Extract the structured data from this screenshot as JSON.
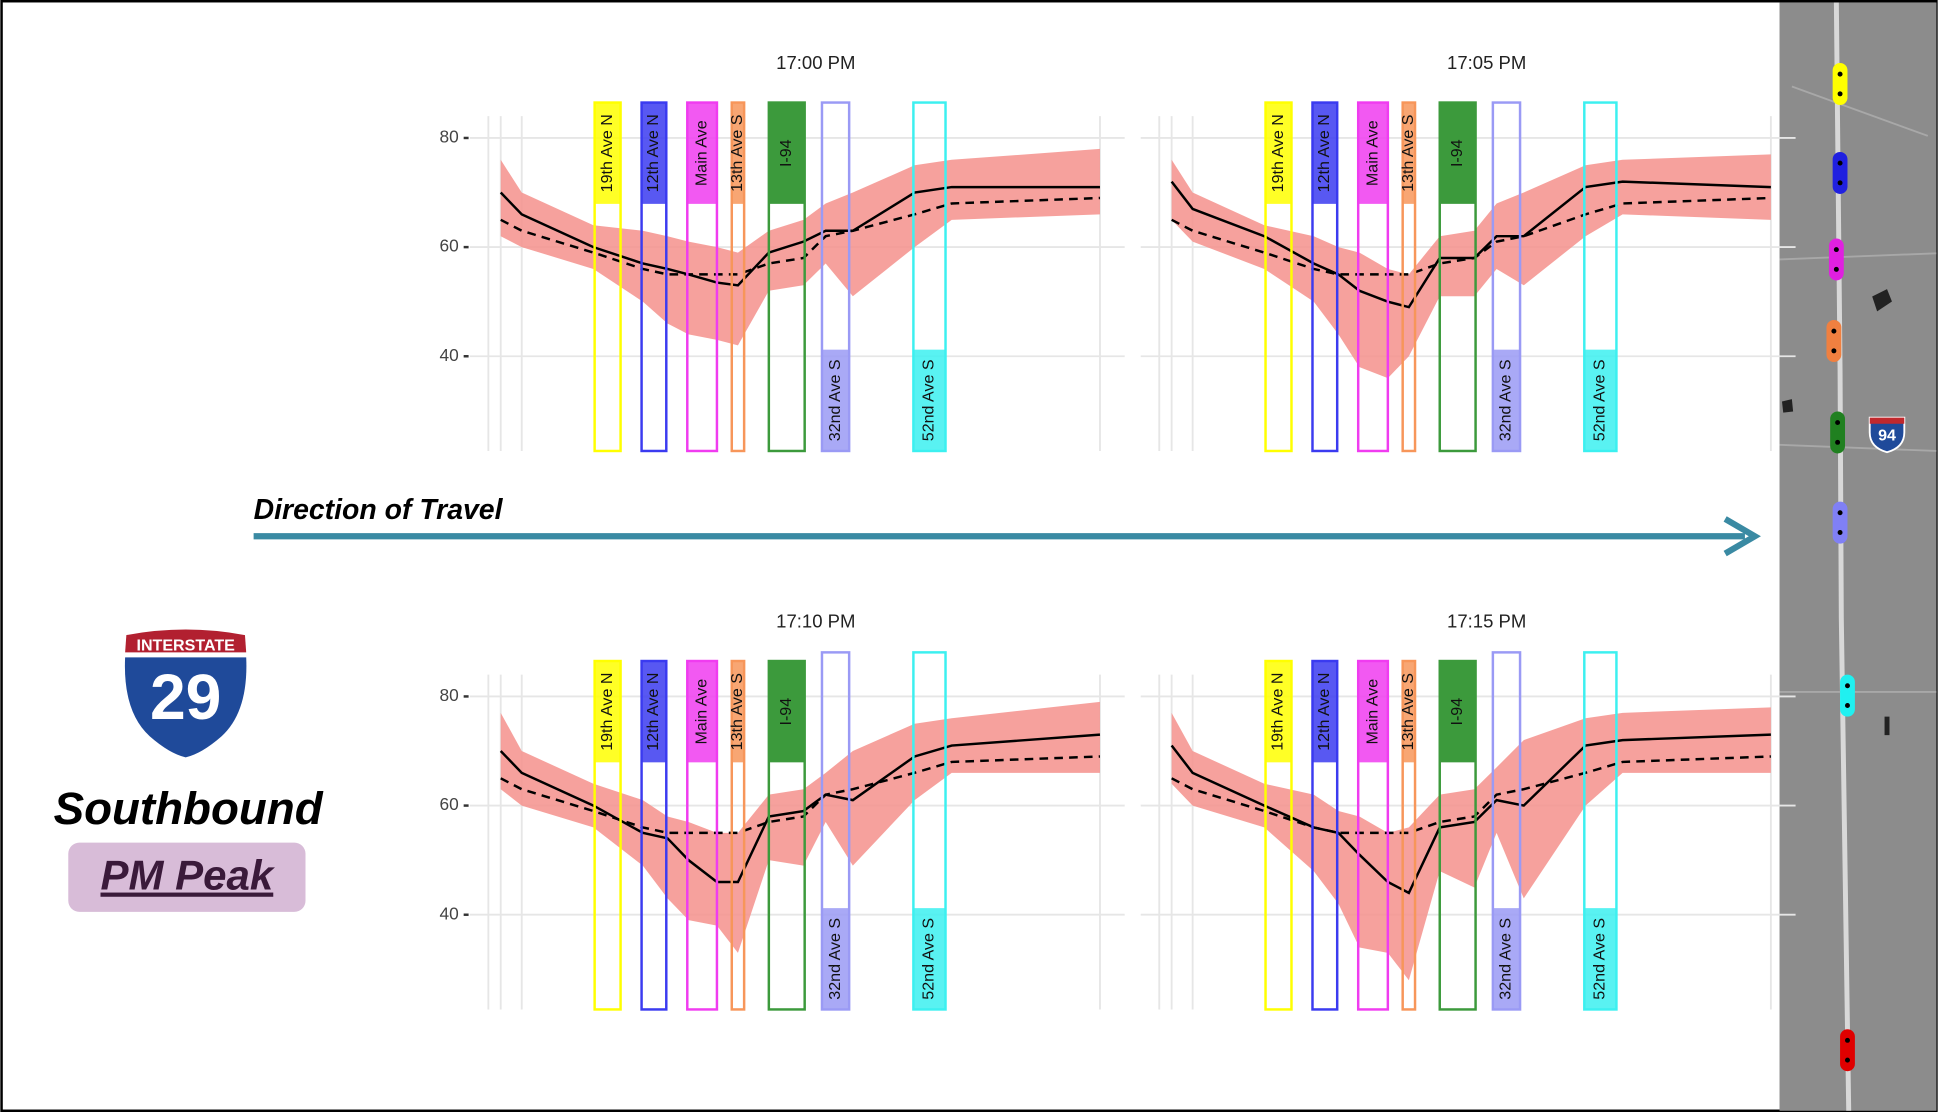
{
  "chart_data": [
    {
      "type": "line",
      "title": "17:00 PM",
      "ylim": [
        24,
        84
      ],
      "yticks": [
        40,
        60,
        80
      ],
      "grid": true,
      "series": [
        {
          "color": "#000000",
          "values": [
            70,
            66,
            60,
            57,
            56,
            55,
            53.5,
            53,
            59,
            61,
            63,
            63,
            70,
            71,
            71
          ]
        },
        {
          "color": "#000000",
          "dashed": true,
          "values": [
            65,
            63,
            59,
            56,
            55,
            55,
            55,
            55,
            57,
            58,
            62,
            63,
            66,
            68,
            69
          ]
        }
      ],
      "band": {
        "color": "#f4908c",
        "high": [
          76,
          70,
          64,
          63,
          62,
          61,
          60,
          59,
          63,
          65,
          68,
          70,
          75,
          76,
          78
        ],
        "low": [
          62,
          60,
          56,
          50,
          46,
          44,
          43,
          42,
          52,
          53,
          57,
          51,
          60,
          65,
          66
        ]
      }
    },
    {
      "type": "line",
      "title": "17:05 PM",
      "ylim": [
        24,
        84
      ],
      "yticks": [
        40,
        60,
        80
      ],
      "grid": true,
      "series": [
        {
          "color": "#000000",
          "values": [
            72,
            67,
            62,
            57,
            55,
            52,
            50,
            49,
            58,
            58,
            62,
            62,
            71,
            72,
            71
          ]
        },
        {
          "color": "#000000",
          "dashed": true,
          "values": [
            65,
            63,
            59,
            56,
            55,
            55,
            55,
            55,
            57,
            58,
            61,
            62,
            66,
            68,
            69
          ]
        }
      ],
      "band": {
        "color": "#f4908c",
        "high": [
          76,
          70,
          64,
          62,
          60,
          59,
          56,
          55,
          62,
          63,
          68,
          70,
          75,
          76,
          77
        ],
        "low": [
          65,
          61,
          56,
          50,
          44,
          38,
          36,
          40,
          51,
          51,
          56,
          53,
          62,
          66,
          65
        ]
      }
    },
    {
      "type": "line",
      "title": "17:10 PM",
      "ylim": [
        24,
        84
      ],
      "yticks": [
        40,
        60,
        80
      ],
      "grid": true,
      "series": [
        {
          "color": "#000000",
          "values": [
            70,
            66,
            60,
            55,
            54,
            50,
            46,
            46,
            58,
            59,
            62,
            61,
            69,
            71,
            73
          ]
        },
        {
          "color": "#000000",
          "dashed": true,
          "values": [
            65,
            63,
            59,
            56,
            55,
            55,
            55,
            55,
            57,
            58,
            62,
            63,
            66,
            68,
            69
          ]
        }
      ],
      "band": {
        "color": "#f4908c",
        "high": [
          77,
          70,
          64,
          61,
          58,
          57,
          55,
          55,
          62,
          63,
          66,
          70,
          75,
          76,
          79
        ],
        "low": [
          63,
          60,
          56,
          49,
          43,
          39,
          38,
          33,
          50,
          49,
          57,
          49,
          61,
          66,
          66
        ]
      }
    },
    {
      "type": "line",
      "title": "17:15 PM",
      "ylim": [
        24,
        84
      ],
      "yticks": [
        40,
        60,
        80
      ],
      "grid": true,
      "series": [
        {
          "color": "#000000",
          "values": [
            71,
            66,
            60,
            56,
            55,
            51,
            46,
            44,
            56,
            57,
            61,
            60,
            71,
            72,
            73
          ]
        },
        {
          "color": "#000000",
          "dashed": true,
          "values": [
            65,
            63,
            59,
            56,
            55,
            55,
            55,
            55,
            57,
            58,
            62,
            63,
            66,
            68,
            69
          ]
        }
      ],
      "band": {
        "color": "#f4908c",
        "high": [
          77,
          70,
          64,
          62,
          59,
          58,
          55,
          56,
          62,
          63,
          67,
          72,
          76,
          77,
          78
        ],
        "low": [
          64,
          60,
          56,
          48,
          42,
          34,
          33,
          28,
          48,
          45,
          55,
          43,
          60,
          66,
          66
        ]
      }
    }
  ],
  "interchanges": [
    {
      "label": "19th Ave N",
      "color": "#ffff00"
    },
    {
      "label": "12th Ave N",
      "color": "#3b3bf0"
    },
    {
      "label": "Main Ave",
      "color": "#f03cf0"
    },
    {
      "label": "13th Ave S",
      "color": "#f7965a"
    },
    {
      "label": "I-94",
      "color": "#3c9a3c"
    },
    {
      "label": "32nd Ave S",
      "color": "#9a9af5"
    },
    {
      "label": "52nd Ave S",
      "color": "#3cf0f0"
    }
  ],
  "direction": "Direction of Travel",
  "shield": {
    "top": "INTERSTATE",
    "number": "29"
  },
  "map_shield": "94",
  "heading": "Southbound",
  "period": "PM Peak"
}
